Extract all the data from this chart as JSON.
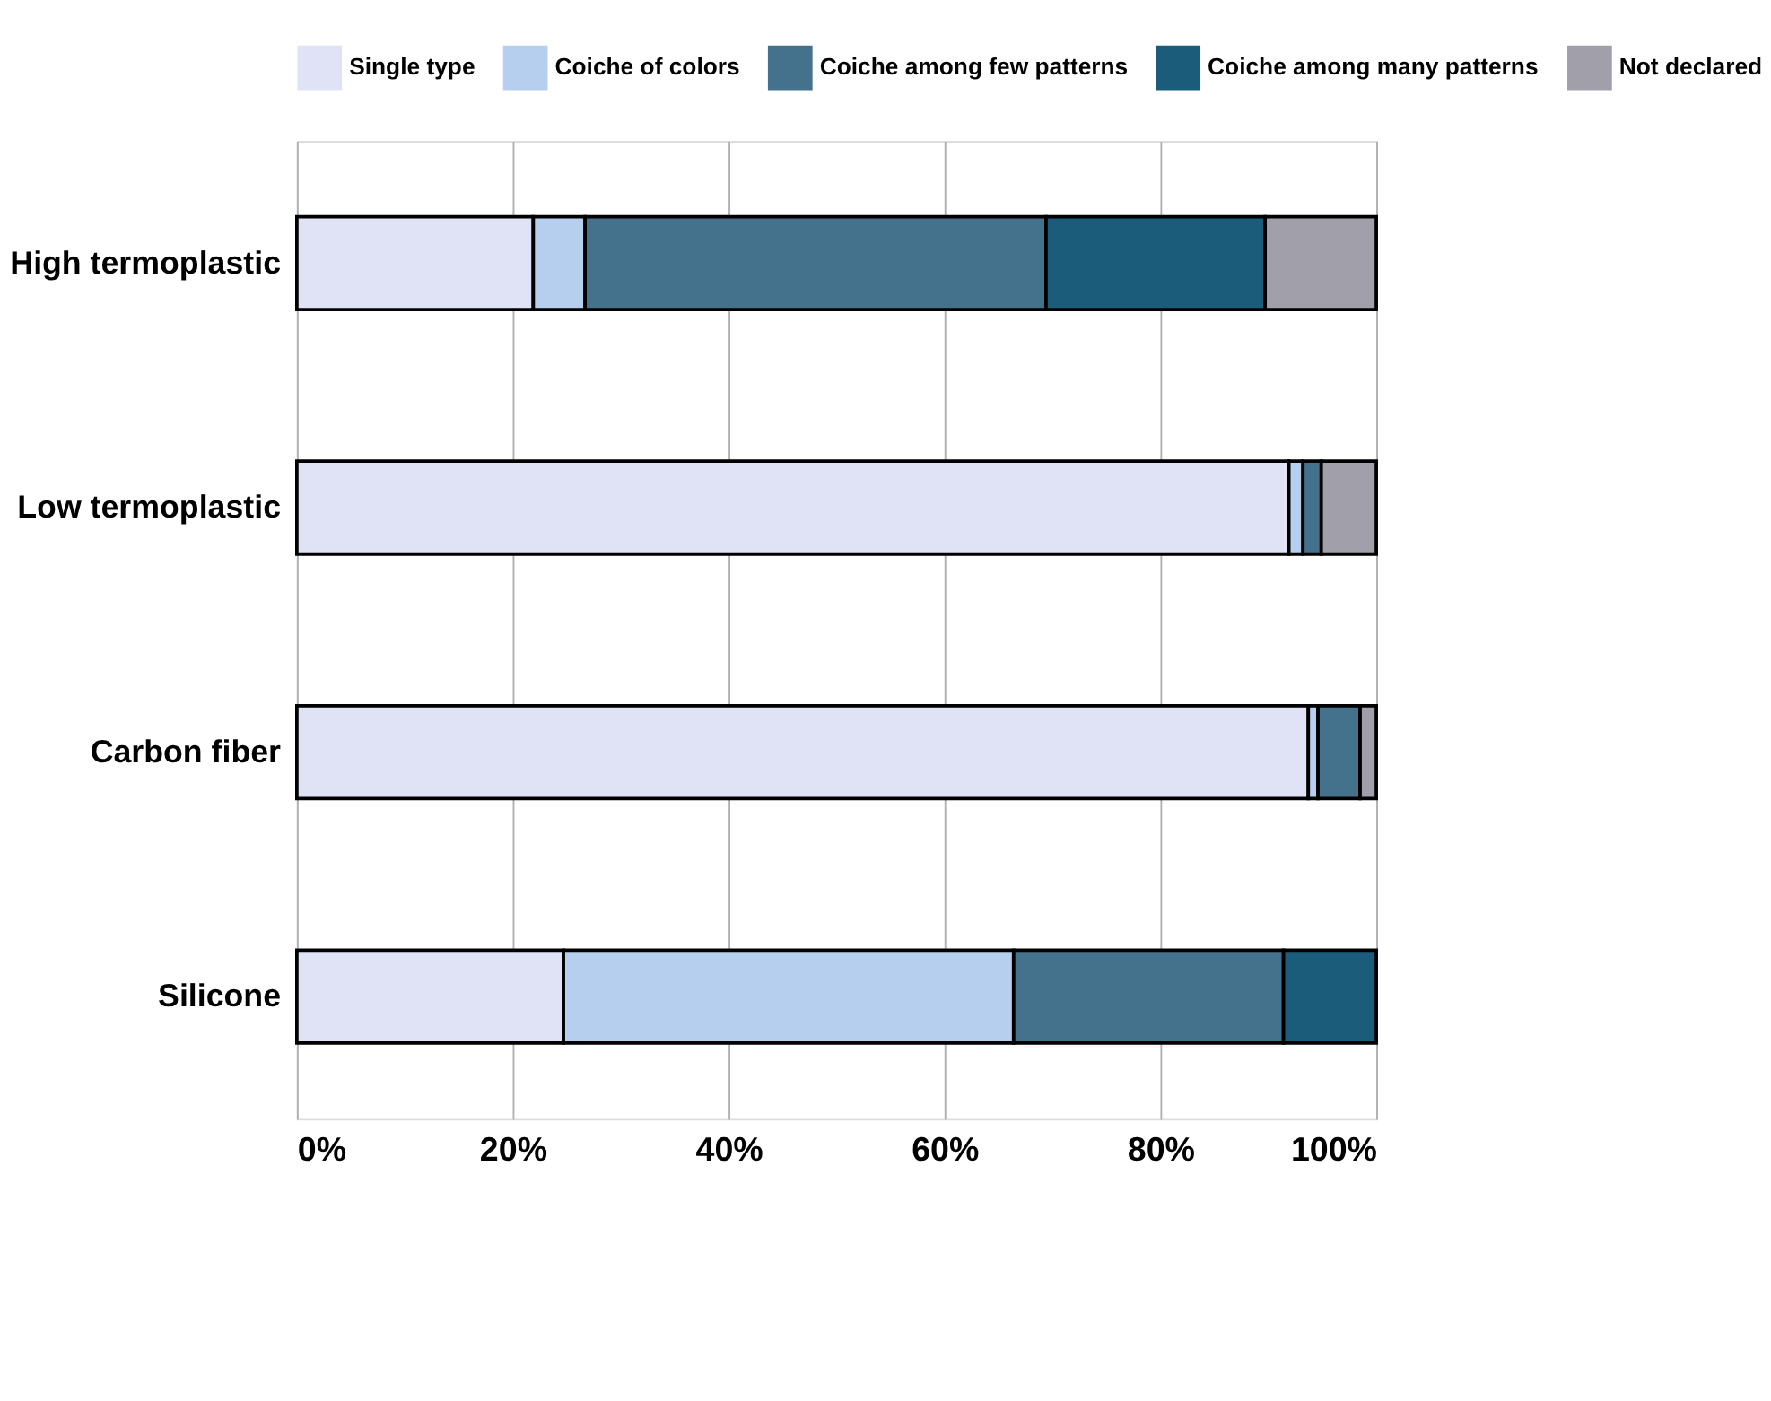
{
  "chart_data": {
    "type": "bar",
    "orientation": "horizontal",
    "stacked": true,
    "categories": [
      "High termoplastic",
      "Low termoplastic",
      "Carbon fiber",
      "Silicone"
    ],
    "series": [
      {
        "name": "Single type",
        "color": "#dfe3f5",
        "values": [
          21.9,
          91.9,
          93.7,
          24.7
        ]
      },
      {
        "name": "Coiche of colors",
        "color": "#b7cfef",
        "values": [
          4.8,
          1.3,
          0.9,
          41.7
        ]
      },
      {
        "name": "Coiche among few patterns",
        "color": "#44728c",
        "values": [
          42.7,
          1.7,
          3.9,
          25.0
        ]
      },
      {
        "name": "Coiche among many patterns",
        "color": "#1b5c7a",
        "values": [
          20.3,
          null,
          null,
          8.6
        ]
      },
      {
        "name": "Not declared",
        "color": "#a19fa9",
        "values": [
          10.3,
          5.1,
          1.5,
          null
        ]
      }
    ],
    "xlim": [
      0,
      100
    ],
    "xticks": [
      {
        "value": 0,
        "label": "0%"
      },
      {
        "value": 20,
        "label": "20%"
      },
      {
        "value": 40,
        "label": "40%"
      },
      {
        "value": 60,
        "label": "60%"
      },
      {
        "value": 80,
        "label": "80%"
      },
      {
        "value": 100,
        "label": "100%"
      }
    ],
    "grid": "x",
    "legend": "top"
  }
}
